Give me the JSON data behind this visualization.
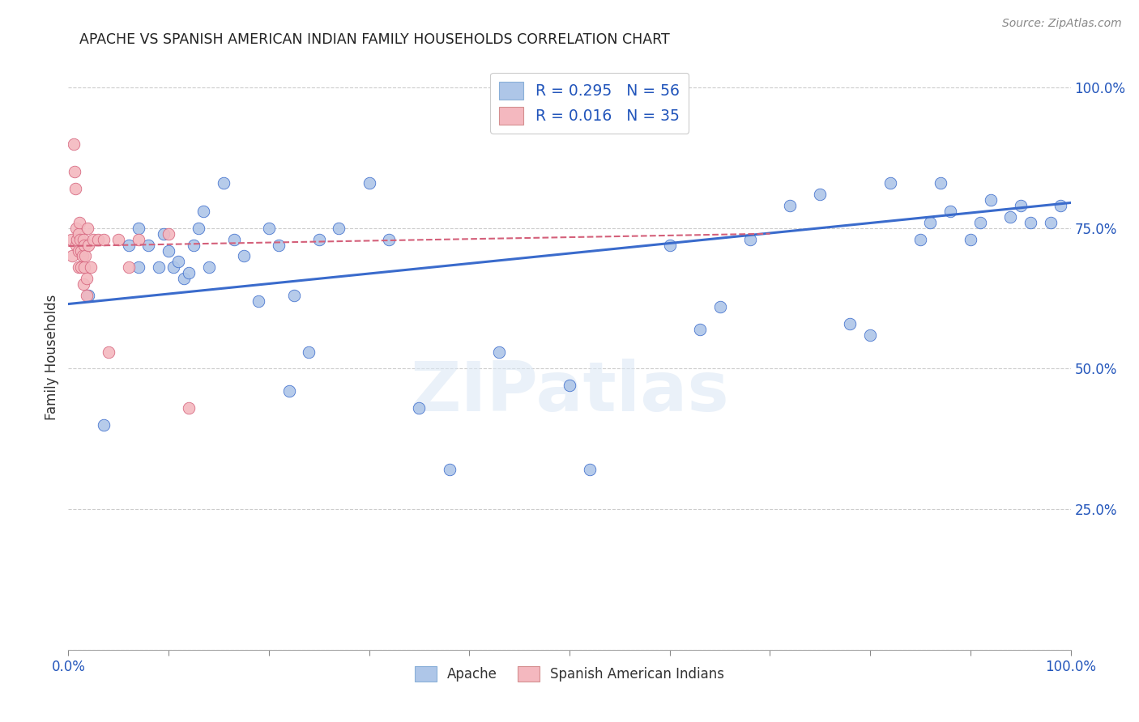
{
  "title": "APACHE VS SPANISH AMERICAN INDIAN FAMILY HOUSEHOLDS CORRELATION CHART",
  "source": "Source: ZipAtlas.com",
  "ylabel": "Family Households",
  "watermark": "ZIPatlas",
  "legend_label1": "Apache",
  "legend_label2": "Spanish American Indians",
  "blue_color": "#aec6e8",
  "pink_color": "#f4b8bf",
  "line_blue": "#3a6bcc",
  "line_pink": "#d4607a",
  "title_color": "#222222",
  "axis_label_color": "#2255bb",
  "tick_color": "#2255bb",
  "grid_color": "#cccccc",
  "background": "#ffffff",
  "apache_x": [
    0.02,
    0.035,
    0.06,
    0.07,
    0.07,
    0.08,
    0.09,
    0.095,
    0.1,
    0.105,
    0.11,
    0.115,
    0.12,
    0.125,
    0.13,
    0.135,
    0.14,
    0.155,
    0.165,
    0.175,
    0.19,
    0.2,
    0.21,
    0.22,
    0.225,
    0.24,
    0.25,
    0.27,
    0.3,
    0.32,
    0.35,
    0.38,
    0.43,
    0.5,
    0.52,
    0.6,
    0.63,
    0.65,
    0.68,
    0.72,
    0.75,
    0.78,
    0.8,
    0.82,
    0.85,
    0.86,
    0.87,
    0.88,
    0.9,
    0.91,
    0.92,
    0.94,
    0.95,
    0.96,
    0.98,
    0.99
  ],
  "apache_y": [
    0.63,
    0.4,
    0.72,
    0.68,
    0.75,
    0.72,
    0.68,
    0.74,
    0.71,
    0.68,
    0.69,
    0.66,
    0.67,
    0.72,
    0.75,
    0.78,
    0.68,
    0.83,
    0.73,
    0.7,
    0.62,
    0.75,
    0.72,
    0.46,
    0.63,
    0.53,
    0.73,
    0.75,
    0.83,
    0.73,
    0.43,
    0.32,
    0.53,
    0.47,
    0.32,
    0.72,
    0.57,
    0.61,
    0.73,
    0.79,
    0.81,
    0.58,
    0.56,
    0.83,
    0.73,
    0.76,
    0.83,
    0.78,
    0.73,
    0.76,
    0.8,
    0.77,
    0.79,
    0.76,
    0.76,
    0.79
  ],
  "spanish_x": [
    0.003,
    0.004,
    0.005,
    0.006,
    0.007,
    0.008,
    0.008,
    0.009,
    0.01,
    0.01,
    0.01,
    0.011,
    0.012,
    0.013,
    0.013,
    0.014,
    0.015,
    0.015,
    0.016,
    0.016,
    0.017,
    0.018,
    0.018,
    0.019,
    0.02,
    0.022,
    0.025,
    0.03,
    0.035,
    0.04,
    0.05,
    0.06,
    0.07,
    0.1,
    0.12
  ],
  "spanish_y": [
    0.73,
    0.7,
    0.9,
    0.85,
    0.82,
    0.75,
    0.72,
    0.73,
    0.74,
    0.71,
    0.68,
    0.76,
    0.73,
    0.71,
    0.68,
    0.7,
    0.73,
    0.65,
    0.72,
    0.68,
    0.7,
    0.66,
    0.63,
    0.75,
    0.72,
    0.68,
    0.73,
    0.73,
    0.73,
    0.53,
    0.73,
    0.68,
    0.73,
    0.74,
    0.43
  ],
  "blue_line_x": [
    0.0,
    1.0
  ],
  "blue_line_y": [
    0.615,
    0.795
  ],
  "pink_line_x": [
    0.0,
    0.7
  ],
  "pink_line_y": [
    0.718,
    0.74
  ],
  "xlim": [
    0.0,
    1.0
  ],
  "ylim": [
    0.0,
    1.04
  ],
  "yticks": [
    0.0,
    0.25,
    0.5,
    0.75,
    1.0
  ],
  "ytick_labels": [
    "",
    "25.0%",
    "50.0%",
    "75.0%",
    "100.0%"
  ],
  "xtick_positions": [
    0.0,
    0.1,
    0.2,
    0.3,
    0.4,
    0.5,
    0.6,
    0.7,
    0.8,
    0.9,
    1.0
  ],
  "xtick_labels": [
    "0.0%",
    "",
    "",
    "",
    "",
    "",
    "",
    "",
    "",
    "",
    "100.0%"
  ]
}
